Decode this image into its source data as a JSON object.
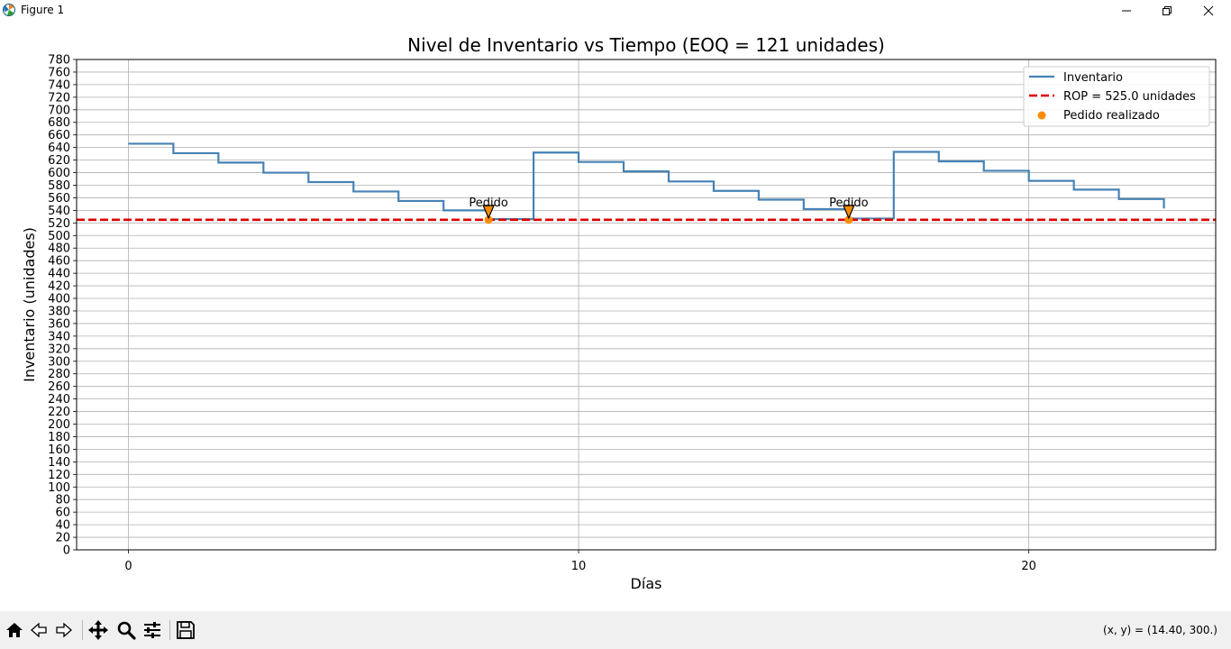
{
  "window": {
    "title": "Figure 1"
  },
  "icons": {
    "app": "matplotlib-icon",
    "minimize": "minimize-icon",
    "maximize": "restore-icon",
    "close": "close-icon"
  },
  "toolbar": {
    "tools": [
      "home-icon",
      "back-arrow-icon",
      "forward-arrow-icon",
      "pan-icon",
      "zoom-icon",
      "configure-subplots-icon",
      "save-icon"
    ],
    "coords": "(x, y) = (14.40, 300.)"
  },
  "chart_data": {
    "type": "line",
    "title": "Nivel de Inventario vs Tiempo (EOQ = 121 unidades)",
    "xlabel": "Días",
    "ylabel": "Inventario (unidades)",
    "xlim": [
      -1.15,
      24.15
    ],
    "ylim": [
      0,
      780
    ],
    "xticks": [
      0,
      10,
      20
    ],
    "yticks": [
      0,
      20,
      40,
      60,
      80,
      100,
      120,
      140,
      160,
      180,
      200,
      220,
      240,
      260,
      280,
      300,
      320,
      340,
      360,
      380,
      400,
      420,
      440,
      460,
      480,
      500,
      520,
      540,
      560,
      580,
      600,
      620,
      640,
      660,
      680,
      700,
      720,
      740,
      760,
      780
    ],
    "grid": true,
    "legend_position": "upper right",
    "colors": {
      "inventory": "#4682b4",
      "rop": "#dd0000",
      "orders": "#ff8c00",
      "zero_line": "#000000"
    },
    "series": [
      {
        "name": "Inventario",
        "style": "step-post",
        "x": [
          0,
          1,
          2,
          3,
          4,
          5,
          6,
          7,
          8,
          9,
          10,
          11,
          12,
          13,
          14,
          15,
          16,
          17,
          18,
          19,
          20,
          21,
          22,
          23
        ],
        "y": [
          646,
          631,
          616,
          600,
          585,
          570,
          555,
          540,
          526,
          632,
          617,
          602,
          586,
          571,
          557,
          542,
          527,
          633,
          618,
          603,
          587,
          573,
          558,
          543
        ]
      },
      {
        "name": "ROP = 525.0 unidades",
        "style": "hline-dashed",
        "y": 525.0
      },
      {
        "name": "Pedido realizado",
        "style": "scatter",
        "x": [
          8,
          16
        ],
        "y": [
          525,
          525
        ]
      }
    ],
    "reference_lines": [
      {
        "y": 0,
        "style": "dashed"
      }
    ],
    "annotations": [
      {
        "text": "Pedido",
        "x": 8,
        "y": 525
      },
      {
        "text": "Pedido",
        "x": 16,
        "y": 525
      }
    ]
  }
}
